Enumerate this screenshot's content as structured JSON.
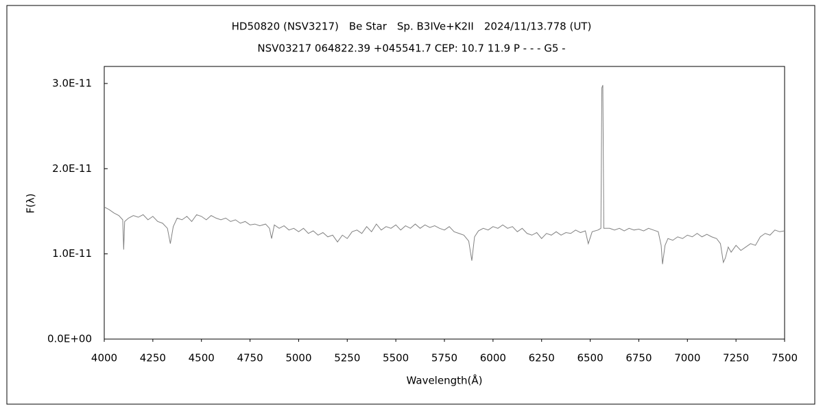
{
  "chart_data": {
    "type": "line",
    "title": "HD50820 (NSV3217)　Be Star　Sp. B3IVe+K2II　2024/11/13.778 (UT)",
    "subtitle": "NSV03217 064822.39 +045541.7 CEP: 10.7 11.9 P - - - G5 -",
    "x_label": "Wavelength(Å)",
    "y_label": "F(λ)",
    "color": "#808080",
    "grid": false,
    "xlim": [
      4000,
      7500
    ],
    "xticks": [
      4000,
      4250,
      4500,
      4750,
      5000,
      5250,
      5500,
      5750,
      6000,
      6250,
      6500,
      6750,
      7000,
      7250,
      7500
    ],
    "ylim": [
      0,
      3.2e-11
    ],
    "yticks": [
      {
        "value": 0,
        "label": "0.0E+00"
      },
      {
        "value": 1e-11,
        "label": "1.0E-11"
      },
      {
        "value": 2e-11,
        "label": "2.0E-11"
      },
      {
        "value": 3e-11,
        "label": "3.0E-11"
      }
    ],
    "x": [
      4000,
      4025,
      4050,
      4075,
      4095,
      4100,
      4105,
      4125,
      4150,
      4175,
      4200,
      4225,
      4250,
      4275,
      4300,
      4325,
      4340,
      4355,
      4375,
      4400,
      4425,
      4450,
      4475,
      4500,
      4525,
      4550,
      4575,
      4600,
      4625,
      4650,
      4675,
      4700,
      4725,
      4750,
      4775,
      4800,
      4830,
      4850,
      4861,
      4875,
      4900,
      4925,
      4950,
      4975,
      5000,
      5025,
      5050,
      5075,
      5100,
      5125,
      5150,
      5175,
      5200,
      5225,
      5250,
      5275,
      5300,
      5325,
      5350,
      5375,
      5400,
      5425,
      5450,
      5475,
      5500,
      5525,
      5550,
      5575,
      5600,
      5625,
      5650,
      5675,
      5700,
      5725,
      5750,
      5775,
      5800,
      5825,
      5850,
      5875,
      5891,
      5905,
      5925,
      5950,
      5975,
      6000,
      6025,
      6050,
      6075,
      6100,
      6125,
      6150,
      6175,
      6200,
      6225,
      6250,
      6275,
      6300,
      6325,
      6350,
      6375,
      6400,
      6425,
      6450,
      6475,
      6490,
      6510,
      6540,
      6555,
      6560,
      6565,
      6570,
      6600,
      6625,
      6650,
      6675,
      6700,
      6725,
      6750,
      6775,
      6800,
      6825,
      6850,
      6865,
      6872,
      6885,
      6900,
      6925,
      6950,
      6975,
      7000,
      7025,
      7050,
      7075,
      7100,
      7125,
      7150,
      7170,
      7185,
      7195,
      7210,
      7225,
      7250,
      7275,
      7300,
      7325,
      7350,
      7375,
      7400,
      7425,
      7450,
      7475,
      7500
    ],
    "values": [
      1.55e-11,
      1.52e-11,
      1.48e-11,
      1.45e-11,
      1.4e-11,
      1.05e-11,
      1.38e-11,
      1.42e-11,
      1.45e-11,
      1.43e-11,
      1.46e-11,
      1.4e-11,
      1.44e-11,
      1.38e-11,
      1.36e-11,
      1.3e-11,
      1.12e-11,
      1.32e-11,
      1.42e-11,
      1.4e-11,
      1.44e-11,
      1.38e-11,
      1.46e-11,
      1.44e-11,
      1.4e-11,
      1.45e-11,
      1.42e-11,
      1.4e-11,
      1.42e-11,
      1.38e-11,
      1.4e-11,
      1.36e-11,
      1.38e-11,
      1.34e-11,
      1.35e-11,
      1.33e-11,
      1.35e-11,
      1.3e-11,
      1.18e-11,
      1.34e-11,
      1.3e-11,
      1.33e-11,
      1.28e-11,
      1.3e-11,
      1.26e-11,
      1.3e-11,
      1.24e-11,
      1.27e-11,
      1.22e-11,
      1.25e-11,
      1.2e-11,
      1.22e-11,
      1.14e-11,
      1.22e-11,
      1.18e-11,
      1.26e-11,
      1.28e-11,
      1.24e-11,
      1.32e-11,
      1.26e-11,
      1.35e-11,
      1.28e-11,
      1.32e-11,
      1.3e-11,
      1.34e-11,
      1.28e-11,
      1.33e-11,
      1.3e-11,
      1.35e-11,
      1.3e-11,
      1.34e-11,
      1.31e-11,
      1.33e-11,
      1.3e-11,
      1.28e-11,
      1.32e-11,
      1.26e-11,
      1.24e-11,
      1.22e-11,
      1.15e-11,
      9.2e-12,
      1.2e-11,
      1.27e-11,
      1.3e-11,
      1.28e-11,
      1.32e-11,
      1.3e-11,
      1.34e-11,
      1.3e-11,
      1.32e-11,
      1.26e-11,
      1.3e-11,
      1.24e-11,
      1.22e-11,
      1.25e-11,
      1.18e-11,
      1.24e-11,
      1.22e-11,
      1.26e-11,
      1.22e-11,
      1.25e-11,
      1.24e-11,
      1.28e-11,
      1.25e-11,
      1.27e-11,
      1.12e-11,
      1.26e-11,
      1.28e-11,
      1.3e-11,
      2.95e-11,
      2.98e-11,
      1.3e-11,
      1.3e-11,
      1.28e-11,
      1.3e-11,
      1.27e-11,
      1.3e-11,
      1.28e-11,
      1.29e-11,
      1.27e-11,
      1.3e-11,
      1.28e-11,
      1.26e-11,
      1.1e-11,
      8.8e-12,
      1.1e-11,
      1.18e-11,
      1.16e-11,
      1.2e-11,
      1.18e-11,
      1.22e-11,
      1.2e-11,
      1.24e-11,
      1.2e-11,
      1.23e-11,
      1.2e-11,
      1.18e-11,
      1.12e-11,
      9e-12,
      9.5e-12,
      1.08e-11,
      1.02e-11,
      1.1e-11,
      1.04e-11,
      1.08e-11,
      1.12e-11,
      1.1e-11,
      1.2e-11,
      1.24e-11,
      1.22e-11,
      1.28e-11,
      1.26e-11,
      1.27e-11
    ]
  }
}
